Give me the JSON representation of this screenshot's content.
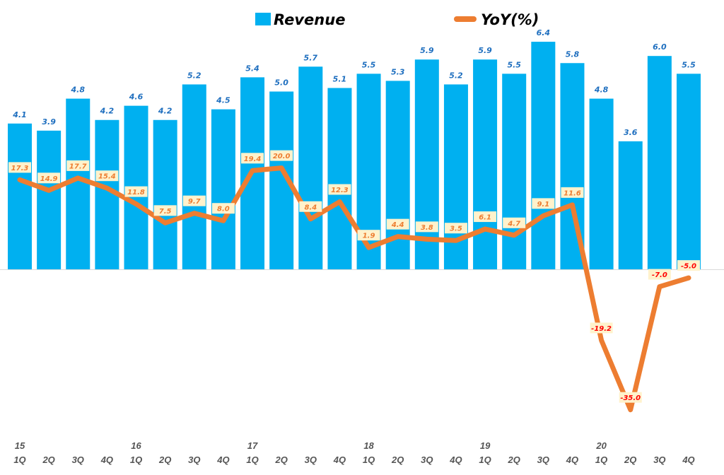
{
  "chart_data": {
    "type": "bar+line",
    "legend": {
      "position": "top",
      "entries": [
        "Revenue",
        "YoY(%)"
      ]
    },
    "categories": [
      "1Q",
      "2Q",
      "3Q",
      "4Q",
      "1Q",
      "2Q",
      "3Q",
      "4Q",
      "1Q",
      "2Q",
      "3Q",
      "4Q",
      "1Q",
      "2Q",
      "3Q",
      "4Q",
      "1Q",
      "2Q",
      "3Q",
      "4Q",
      "1Q",
      "2Q",
      "3Q",
      "4Q"
    ],
    "year_labels": [
      "15",
      "",
      "",
      "",
      "16",
      "",
      "",
      "",
      "17",
      "",
      "",
      "",
      "18",
      "",
      "",
      "",
      "19",
      "",
      "",
      "",
      "20",
      "",
      "",
      ""
    ],
    "series": [
      {
        "name": "Revenue",
        "type": "bar",
        "color": "#00b0f0",
        "values": [
          4.1,
          3.9,
          4.8,
          4.2,
          4.6,
          4.2,
          5.2,
          4.5,
          5.4,
          5.0,
          5.7,
          5.1,
          5.5,
          5.3,
          5.9,
          5.2,
          5.9,
          5.5,
          6.4,
          5.8,
          4.8,
          3.6,
          6.0,
          5.5
        ]
      },
      {
        "name": "YoY(%)",
        "type": "line",
        "color": "#ed7d31",
        "axis": "secondary",
        "values": [
          17.3,
          14.9,
          17.7,
          15.4,
          11.8,
          7.5,
          9.7,
          8.0,
          19.4,
          20.0,
          8.4,
          12.3,
          1.9,
          4.4,
          3.8,
          3.5,
          6.1,
          4.7,
          9.1,
          11.6,
          -19.2,
          -35.0,
          -7.0,
          -5.0
        ]
      }
    ],
    "label_colors": {
      "revenue": "#1f6fbf",
      "yoy_positive": "#ed7d31",
      "yoy_negative": "#ff0000",
      "yoy_box": "#fff2cc"
    },
    "grid": false
  }
}
